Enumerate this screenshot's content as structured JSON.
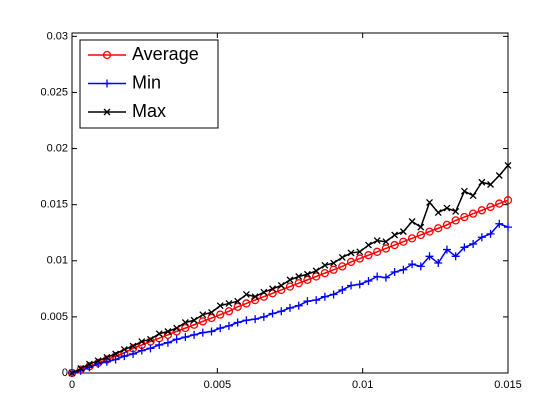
{
  "chart_data": {
    "type": "line",
    "x": [
      0,
      0.0003,
      0.0006,
      0.0009,
      0.0012,
      0.0015,
      0.0018,
      0.0021,
      0.0024,
      0.0027,
      0.003,
      0.0033,
      0.0036,
      0.0039,
      0.0042,
      0.0045,
      0.0048,
      0.0051,
      0.0054,
      0.0057,
      0.006,
      0.0063,
      0.0066,
      0.0069,
      0.0072,
      0.0075,
      0.0078,
      0.0081,
      0.0084,
      0.0087,
      0.009,
      0.0093,
      0.0096,
      0.0099,
      0.0102,
      0.0105,
      0.0108,
      0.0111,
      0.0114,
      0.0117,
      0.012,
      0.0123,
      0.0126,
      0.0129,
      0.0132,
      0.0135,
      0.0138,
      0.0141,
      0.0144,
      0.0147,
      0.015
    ],
    "series": [
      {
        "name": "Average",
        "color": "#ff0000",
        "marker": "circle",
        "values": [
          0,
          0.0003,
          0.0006,
          0.0009,
          0.0012,
          0.0015,
          0.0018,
          0.0022,
          0.0025,
          0.0028,
          0.0031,
          0.0034,
          0.0037,
          0.004,
          0.0043,
          0.0046,
          0.0049,
          0.0052,
          0.0055,
          0.0059,
          0.0062,
          0.0065,
          0.0068,
          0.0071,
          0.0074,
          0.0077,
          0.008,
          0.0083,
          0.0086,
          0.0089,
          0.0092,
          0.0095,
          0.0099,
          0.0102,
          0.0105,
          0.0108,
          0.0111,
          0.0114,
          0.0117,
          0.012,
          0.0123,
          0.0126,
          0.0129,
          0.0132,
          0.0136,
          0.0139,
          0.0142,
          0.0145,
          0.0148,
          0.0151,
          0.0154
        ]
      },
      {
        "name": "Min",
        "color": "#0000ff",
        "marker": "plus",
        "values": [
          0,
          0.0002,
          0.0005,
          0.0008,
          0.001,
          0.0012,
          0.0015,
          0.0017,
          0.002,
          0.0022,
          0.0025,
          0.0027,
          0.003,
          0.0032,
          0.0034,
          0.0036,
          0.0037,
          0.004,
          0.0042,
          0.0045,
          0.0047,
          0.0048,
          0.005,
          0.0053,
          0.0055,
          0.0058,
          0.006,
          0.0064,
          0.0065,
          0.0068,
          0.007,
          0.0074,
          0.0078,
          0.0079,
          0.0082,
          0.0086,
          0.0085,
          0.009,
          0.0092,
          0.0097,
          0.0095,
          0.0104,
          0.0098,
          0.011,
          0.0104,
          0.0112,
          0.0115,
          0.0121,
          0.0124,
          0.0133,
          0.013
        ]
      },
      {
        "name": "Max",
        "color": "#000000",
        "marker": "x",
        "values": [
          0,
          0.0004,
          0.0008,
          0.0011,
          0.0014,
          0.0017,
          0.0021,
          0.0024,
          0.0028,
          0.003,
          0.0035,
          0.0037,
          0.004,
          0.0045,
          0.0047,
          0.0052,
          0.0054,
          0.006,
          0.0062,
          0.0064,
          0.007,
          0.0068,
          0.0072,
          0.0075,
          0.0078,
          0.0083,
          0.0086,
          0.0088,
          0.0091,
          0.0096,
          0.0098,
          0.0103,
          0.0107,
          0.0108,
          0.0114,
          0.0118,
          0.0117,
          0.0123,
          0.0126,
          0.0135,
          0.013,
          0.0152,
          0.0143,
          0.0147,
          0.0144,
          0.0162,
          0.0158,
          0.017,
          0.0168,
          0.0176,
          0.0185
        ]
      }
    ],
    "xlim": [
      0,
      0.015
    ],
    "xticks": [
      0,
      0.005,
      0.01,
      0.015
    ],
    "ylim": [
      0,
      0.0303
    ],
    "yticks": [
      0,
      0.005,
      0.01,
      0.015,
      0.02,
      0.025,
      0.03
    ],
    "grid": false,
    "legend": "upper left"
  }
}
